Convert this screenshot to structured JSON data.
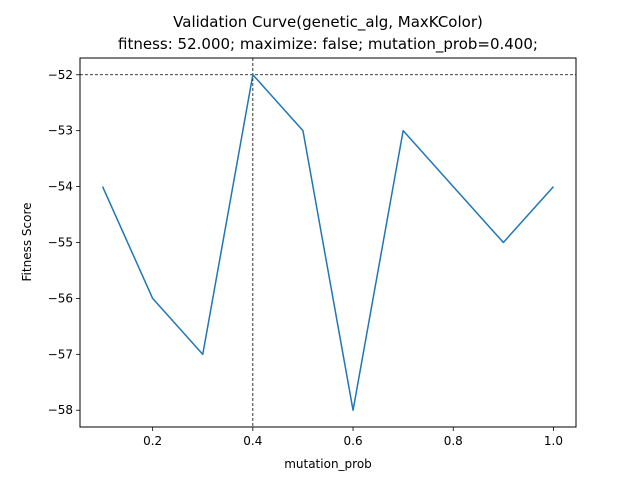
{
  "chart_data": {
    "type": "line",
    "title": "Validation Curve(genetic_alg, MaxKColor)",
    "subtitle": "fitness: 52.000; maximize: false; mutation_prob=0.400;",
    "xlabel": "mutation_prob",
    "ylabel": "Fitness Score",
    "x": [
      0.1,
      0.2,
      0.3,
      0.4,
      0.5,
      0.6,
      0.7,
      0.8,
      0.9,
      1.0
    ],
    "series": [
      {
        "values": [
          -54,
          -56,
          -57,
          -52,
          -53,
          -58,
          -53,
          -54,
          -55,
          -54
        ],
        "color": "#1f77b4"
      }
    ],
    "xlim": [
      0.055,
      1.045
    ],
    "ylim": [
      -58.3,
      -51.7
    ],
    "xticks": [
      0.2,
      0.4,
      0.6,
      0.8,
      1.0
    ],
    "xtick_labels": [
      "0.2",
      "0.4",
      "0.6",
      "0.8",
      "1.0"
    ],
    "yticks": [
      -52,
      -53,
      -54,
      -55,
      -56,
      -57,
      -58
    ],
    "ytick_labels": [
      "−52",
      "−53",
      "−54",
      "−55",
      "−56",
      "−57",
      "−58"
    ],
    "reference_lines": {
      "x": 0.4,
      "y": -52,
      "style": "dashed",
      "color": "#000000"
    },
    "grid": false,
    "legend": "none"
  }
}
